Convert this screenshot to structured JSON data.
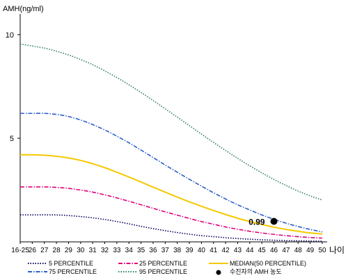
{
  "chart_data": {
    "type": "line",
    "ylabel": "AMH(ng/ml)",
    "xlabel": "나이",
    "ylim": [
      0,
      11
    ],
    "yticks": [
      5,
      10
    ],
    "x_tick_labels": [
      "16-25",
      "26",
      "27",
      "28",
      "29",
      "30",
      "31",
      "32",
      "33",
      "34",
      "35",
      "36",
      "37",
      "38",
      "39",
      "40",
      "41",
      "42",
      "43",
      "44",
      "45",
      "46",
      "47",
      "48",
      "49",
      "50"
    ],
    "series": [
      {
        "name": "5 PERCENTILE",
        "color": "#00005a",
        "style": "dotted",
        "values": [
          1.3,
          1.3,
          1.3,
          1.3,
          1.27,
          1.22,
          1.16,
          1.08,
          0.98,
          0.87,
          0.75,
          0.64,
          0.54,
          0.45,
          0.37,
          0.3,
          0.25,
          0.2,
          0.16,
          0.13,
          0.1,
          0.08,
          0.06,
          0.05,
          0.04,
          0.03
        ]
      },
      {
        "name": "25 PERCENTILE",
        "color": "#e0007a",
        "style": "dashdot",
        "values": [
          2.65,
          2.65,
          2.65,
          2.63,
          2.58,
          2.5,
          2.4,
          2.27,
          2.12,
          1.96,
          1.79,
          1.62,
          1.45,
          1.29,
          1.13,
          0.98,
          0.85,
          0.72,
          0.61,
          0.51,
          0.43,
          0.36,
          0.3,
          0.25,
          0.21,
          0.18
        ]
      },
      {
        "name": "MEDIAN(50 PERCENTILE)",
        "color": "#f5c800",
        "style": "solid",
        "values": [
          4.2,
          4.2,
          4.18,
          4.13,
          4.05,
          3.93,
          3.77,
          3.58,
          3.36,
          3.13,
          2.89,
          2.64,
          2.4,
          2.16,
          1.93,
          1.72,
          1.51,
          1.32,
          1.14,
          0.98,
          0.84,
          0.71,
          0.6,
          0.51,
          0.43,
          0.38
        ]
      },
      {
        "name": "75 PERCENTILE",
        "color": "#2a5fc8",
        "style": "dashdot",
        "values": [
          6.2,
          6.2,
          6.2,
          6.15,
          6.05,
          5.88,
          5.66,
          5.4,
          5.1,
          4.78,
          4.43,
          4.07,
          3.71,
          3.36,
          3.02,
          2.69,
          2.37,
          2.07,
          1.79,
          1.54,
          1.3,
          1.09,
          0.9,
          0.74,
          0.6,
          0.48
        ]
      },
      {
        "name": "95 PERCENTILE",
        "color": "#2e7d5a",
        "style": "dotted",
        "values": [
          9.55,
          9.45,
          9.35,
          9.2,
          9.02,
          8.8,
          8.55,
          8.25,
          7.93,
          7.58,
          7.21,
          6.82,
          6.42,
          6.02,
          5.61,
          5.2,
          4.8,
          4.41,
          4.03,
          3.67,
          3.33,
          3.01,
          2.72,
          2.45,
          2.22,
          2.02
        ]
      }
    ],
    "marker": {
      "label": "수진자의 AMH 농도",
      "x_label": "46",
      "value": 0.99,
      "data_label": "0.99"
    },
    "legend_position": "bottom"
  }
}
